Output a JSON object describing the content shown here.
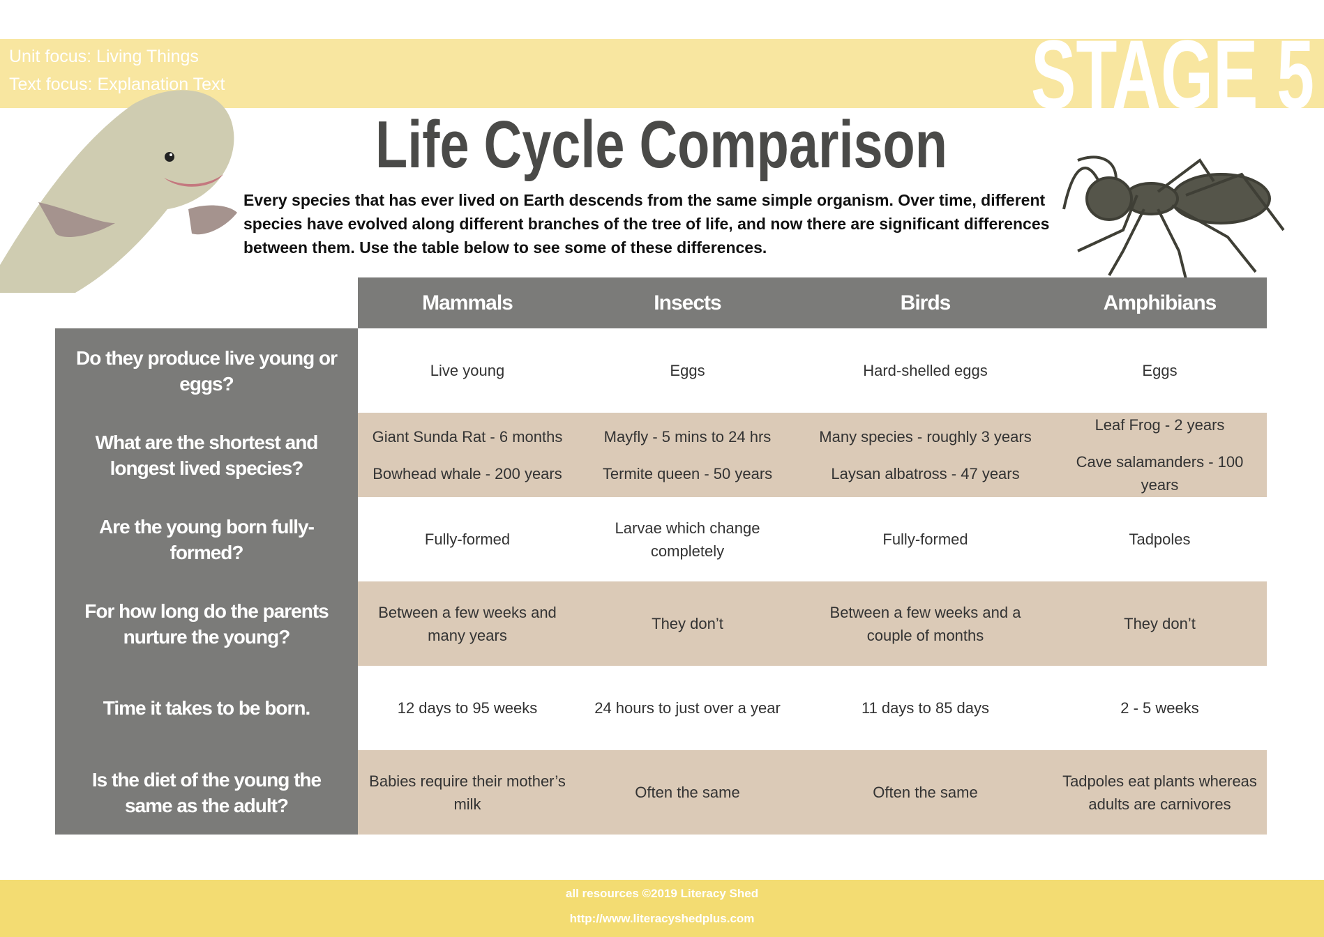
{
  "header": {
    "unit_focus": "Unit focus: Living Things",
    "text_focus": "Text focus: Explanation Text",
    "stage": "STAGE 5"
  },
  "title": "Life Cycle Comparison",
  "intro": "Every species that has ever lived on Earth descends from the same simple organism. Over time, different species have evolved along different branches of the tree of life, and now there are significant differences between them. Use the table below to see some of these differences.",
  "table": {
    "columns": [
      "Mammals",
      "Insects",
      "Birds",
      "Amphibians"
    ],
    "rows": [
      {
        "question": "Do they produce live young or eggs?",
        "cells": [
          "Live young",
          "Eggs",
          "Hard-shelled eggs",
          "Eggs"
        ]
      },
      {
        "question": "What are the shortest and longest lived species?",
        "cells": [
          [
            "Giant Sunda Rat - 6 months",
            "Bowhead whale - 200 years"
          ],
          [
            "Mayfly - 5 mins to 24 hrs",
            "Termite queen - 50 years"
          ],
          [
            "Many species - roughly 3 years",
            "Laysan albatross - 47 years"
          ],
          [
            "Leaf Frog - 2 years",
            "Cave salamanders - 100 years"
          ]
        ]
      },
      {
        "question": "Are the young born fully-formed?",
        "cells": [
          "Fully-formed",
          "Larvae which change completely",
          "Fully-formed",
          "Tadpoles"
        ]
      },
      {
        "question": "For how long do the parents nurture the young?",
        "cells": [
          "Between a few weeks and many years",
          "They don’t",
          "Between a few weeks and a couple of months",
          "They don’t"
        ]
      },
      {
        "question": "Time it takes to be born.",
        "cells": [
          "12 days to 95 weeks",
          "24 hours to just over a year",
          "11 days to 85 days",
          "2 - 5 weeks"
        ]
      },
      {
        "question": "Is the diet of the young the same as the adult?",
        "cells": [
          "Babies require their mother’s milk",
          "Often the same",
          "Often the same",
          "Tadpoles eat plants whereas adults are carnivores"
        ]
      }
    ]
  },
  "footer": {
    "copyright": "all resources ©2019 Literacy Shed",
    "url": "http://www.literacyshedplus.com"
  }
}
